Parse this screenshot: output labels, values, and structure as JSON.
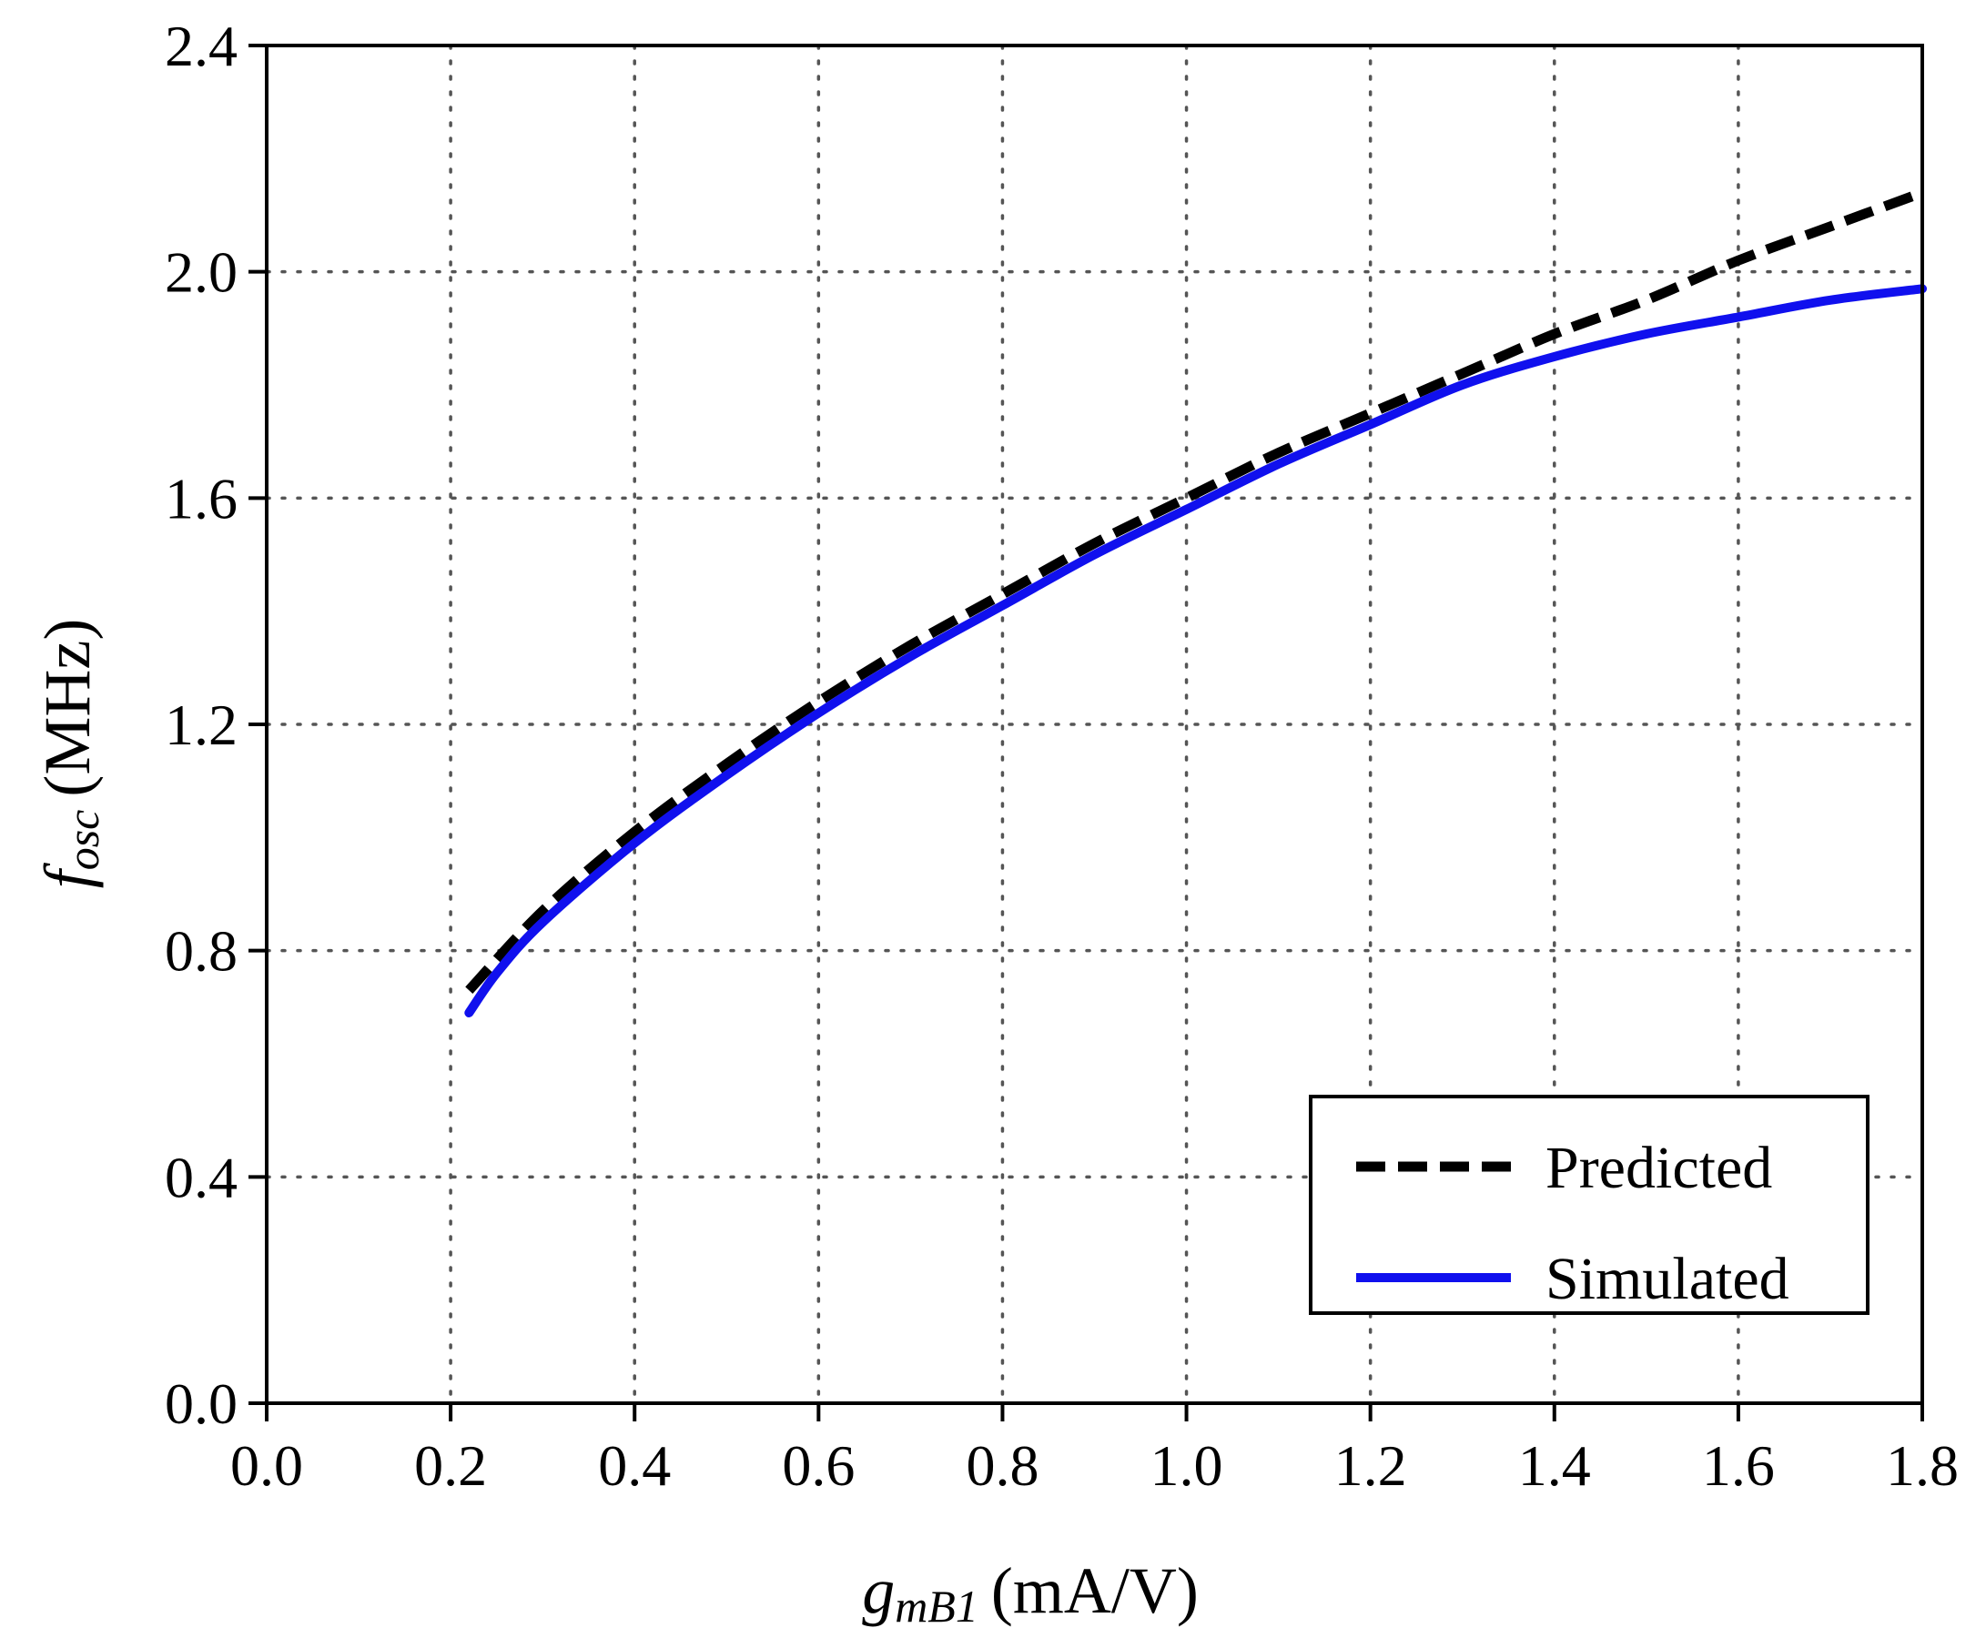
{
  "chart_data": {
    "type": "line",
    "xlabel": {
      "symbol": "g",
      "subscript": "mB1",
      "unit": "(mA/V)"
    },
    "ylabel": {
      "symbol": "f",
      "subscript": "osc",
      "unit": "(MHz)"
    },
    "xlim": [
      0.0,
      1.8
    ],
    "ylim": [
      0.0,
      2.4
    ],
    "x_ticks": [
      "0.0",
      "0.2",
      "0.4",
      "0.6",
      "0.8",
      "1.0",
      "1.2",
      "1.4",
      "1.6",
      "1.8"
    ],
    "y_ticks": [
      "0.0",
      "0.4",
      "0.8",
      "1.2",
      "1.6",
      "2.0",
      "2.4"
    ],
    "grid": true,
    "legend_position": "bottom-right",
    "series": [
      {
        "name": "Predicted",
        "style": "dashed",
        "color": "#000000",
        "x": [
          0.22,
          0.3,
          0.4,
          0.5,
          0.6,
          0.7,
          0.8,
          0.9,
          1.0,
          1.1,
          1.2,
          1.3,
          1.4,
          1.5,
          1.6,
          1.7,
          1.8
        ],
        "y": [
          0.73,
          0.87,
          1.01,
          1.13,
          1.24,
          1.34,
          1.43,
          1.52,
          1.6,
          1.68,
          1.75,
          1.82,
          1.89,
          1.95,
          2.02,
          2.08,
          2.14
        ]
      },
      {
        "name": "Simulated",
        "style": "solid",
        "color": "#1010ee",
        "x": [
          0.22,
          0.25,
          0.3,
          0.4,
          0.5,
          0.6,
          0.7,
          0.8,
          0.9,
          1.0,
          1.1,
          1.2,
          1.3,
          1.4,
          1.5,
          1.6,
          1.7,
          1.8
        ],
        "y": [
          0.69,
          0.76,
          0.85,
          0.99,
          1.11,
          1.22,
          1.32,
          1.41,
          1.5,
          1.58,
          1.66,
          1.73,
          1.8,
          1.85,
          1.89,
          1.92,
          1.95,
          1.97
        ]
      }
    ]
  }
}
